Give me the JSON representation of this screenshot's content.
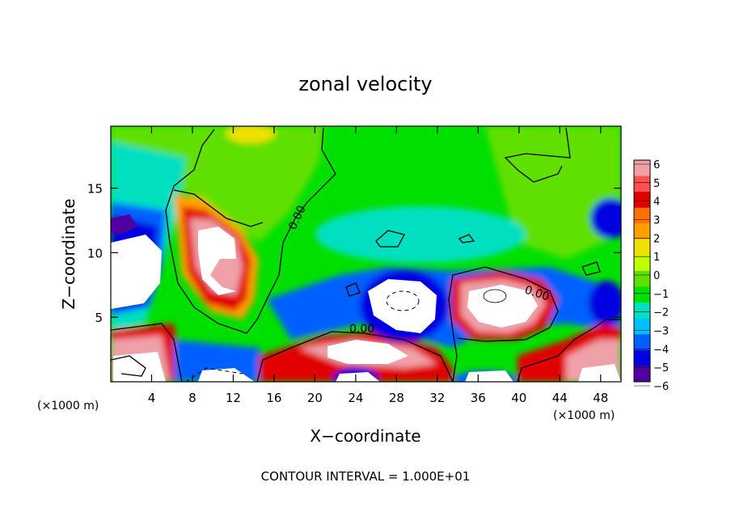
{
  "chart_data": {
    "type": "heatmap",
    "title": "zonal velocity",
    "xlabel": "X−coordinate",
    "ylabel": "Z−coordinate",
    "x_unit": "(×1000 m)",
    "y_unit": "(×1000 m)",
    "xlim": [
      0,
      50
    ],
    "ylim": [
      0,
      19.8
    ],
    "x_ticks": [
      4,
      8,
      12,
      16,
      20,
      24,
      28,
      32,
      36,
      40,
      44,
      48
    ],
    "y_ticks": [
      5,
      10,
      15
    ],
    "colorbar": {
      "range": [
        -6,
        6
      ],
      "tick_labels": [
        "6",
        "5",
        "4",
        "3",
        "2",
        "1",
        "0",
        "−1",
        "−2",
        "−3",
        "−4",
        "−5",
        "−6"
      ],
      "colors": [
        "#f0a0a8",
        "#ff5050",
        "#e00000",
        "#ff7000",
        "#ffa000",
        "#f0e000",
        "#c0ff00",
        "#60e000",
        "#00e000",
        "#00e0c0",
        "#00c0ff",
        "#0060ff",
        "#0000e0",
        "#5000a0"
      ],
      "placement": "right"
    },
    "contour_labels": [
      "0.00",
      "0.00",
      "0.00"
    ],
    "footer": "CONTOUR INTERVAL = 1.000E+01",
    "background_color": "#00e000"
  }
}
